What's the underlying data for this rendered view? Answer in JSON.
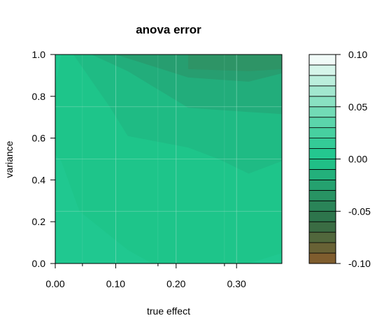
{
  "chart_data": {
    "type": "filled-contour",
    "title": "anova error",
    "xlabel": "true effect",
    "ylabel": "variance",
    "xlim": [
      0,
      0.375
    ],
    "ylim": [
      0,
      1
    ],
    "x_ticks": [
      "0.00",
      "0.10",
      "0.20",
      "0.30"
    ],
    "x_tick_values": [
      0,
      0.1,
      0.2,
      0.3
    ],
    "y_ticks": [
      "0.0",
      "0.2",
      "0.4",
      "0.6",
      "0.8",
      "1.0"
    ],
    "y_tick_values": [
      0,
      0.2,
      0.4,
      0.6,
      0.8,
      1.0
    ],
    "grid": true,
    "grid_color": "#8fdcc0",
    "colorbar": {
      "min": -0.1,
      "max": 0.1,
      "step": 0.01,
      "ticks": [
        "0.10",
        "0.05",
        "0.00",
        "-0.05",
        "-0.10"
      ],
      "tick_values": [
        0.1,
        0.05,
        0.0,
        -0.05,
        -0.1
      ],
      "low_color": "#8b5a2b",
      "mid_color": "#1fc68c",
      "high_color": "#ffffff"
    },
    "regions": [
      {
        "level": [
          0.0,
          0.01
        ],
        "color": "#1ec58a",
        "polygon": [
          [
            0,
            0
          ],
          [
            0.375,
            0
          ],
          [
            0.375,
            1
          ],
          [
            0,
            1
          ]
        ]
      },
      {
        "level": [
          -0.01,
          0.0
        ],
        "color": "#1fbb84",
        "polygon": [
          [
            0.03,
            1
          ],
          [
            0.09,
            0.75
          ],
          [
            0.12,
            0.61
          ],
          [
            0.22,
            0.555
          ],
          [
            0.27,
            0.5
          ],
          [
            0.32,
            0.43
          ],
          [
            0.375,
            0.49
          ],
          [
            0.375,
            1
          ]
        ]
      },
      {
        "level": [
          -0.02,
          -0.01
        ],
        "color": "#22ad7b",
        "polygon": [
          [
            0.06,
            1
          ],
          [
            0.12,
            0.92
          ],
          [
            0.22,
            0.745
          ],
          [
            0.32,
            0.725
          ],
          [
            0.375,
            0.715
          ],
          [
            0.375,
            1
          ]
        ]
      },
      {
        "level": [
          -0.03,
          -0.02
        ],
        "color": "#279e70",
        "polygon": [
          [
            0.1,
            1
          ],
          [
            0.22,
            0.89
          ],
          [
            0.32,
            0.87
          ],
          [
            0.375,
            0.91
          ],
          [
            0.375,
            1
          ]
        ]
      },
      {
        "level": [
          -0.04,
          -0.03
        ],
        "color": "#2e9466",
        "polygon": [
          [
            0.22,
            1
          ],
          [
            0.22,
            0.93
          ],
          [
            0.32,
            0.92
          ],
          [
            0.375,
            0.93
          ],
          [
            0.375,
            1
          ]
        ]
      },
      {
        "level": [
          0.01,
          0.02
        ],
        "color": "#20c890",
        "polygon": [
          [
            0,
            0.52
          ],
          [
            0.01,
            0.49
          ],
          [
            0.04,
            0.25
          ],
          [
            0.12,
            0.065
          ],
          [
            0.16,
            0
          ],
          [
            0,
            0
          ]
        ]
      },
      {
        "level": [
          0.01,
          0.02
        ],
        "color": "#20c890",
        "polygon": [
          [
            0,
            0.85
          ],
          [
            0.01,
            1
          ],
          [
            0,
            1
          ]
        ]
      },
      {
        "level": [
          0.01,
          0.02
        ],
        "color": "#20c890",
        "polygon": [
          [
            0.32,
            0
          ],
          [
            0.375,
            0.05
          ],
          [
            0.375,
            0
          ]
        ]
      }
    ]
  }
}
